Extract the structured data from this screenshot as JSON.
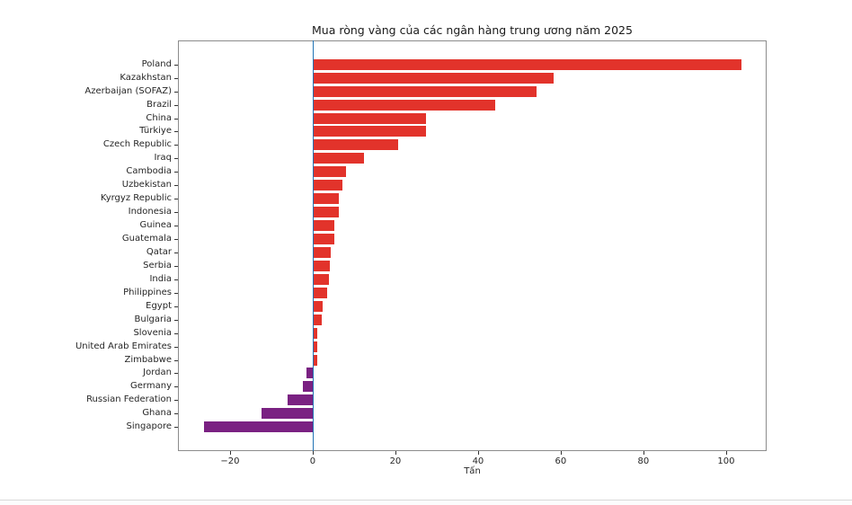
{
  "chart_data": {
    "type": "bar",
    "orientation": "horizontal",
    "title": "Mua ròng vàng của các ngân hàng trung ương năm 2025",
    "xlabel": "Tấn",
    "ylabel": "",
    "categories": [
      "Poland",
      "Kazakhstan",
      "Azerbaijan (SOFAZ)",
      "Brazil",
      "China",
      "Türkiye",
      "Czech Republic",
      "Iraq",
      "Cambodia",
      "Uzbekistan",
      "Kyrgyz Republic",
      "Indonesia",
      "Guinea",
      "Guatemala",
      "Qatar",
      "Serbia",
      "India",
      "Philippines",
      "Egypt",
      "Bulgaria",
      "Slovenia",
      "United Arab Emirates",
      "Zimbabwe",
      "Jordan",
      "Germany",
      "Russian Federation",
      "Ghana",
      "Singapore"
    ],
    "values": [
      103.7,
      58.3,
      54.1,
      44.1,
      27.5,
      27.4,
      20.7,
      12.4,
      8.0,
      7.2,
      6.4,
      6.3,
      5.3,
      5.2,
      4.4,
      4.2,
      3.9,
      3.6,
      2.3,
      2.2,
      1.2,
      1.1,
      1.0,
      -1.5,
      -2.3,
      -6.1,
      -12.4,
      -26.2
    ],
    "xlim": [
      -32.6,
      109.8
    ],
    "xticks": [
      -20,
      0,
      20,
      40,
      60,
      80,
      100
    ],
    "xtick_labels": [
      "−20",
      "0",
      "20",
      "40",
      "60",
      "80",
      "100"
    ],
    "bar_band_fraction": 0.8,
    "grid": false,
    "legend": false,
    "zero_reference_line": true,
    "colors": {
      "positive_bar": "#e2332b",
      "negative_bar": "#7a2182",
      "zero_line": "#2273b5",
      "spine": "#8c8c8c",
      "text": "#262626"
    }
  }
}
